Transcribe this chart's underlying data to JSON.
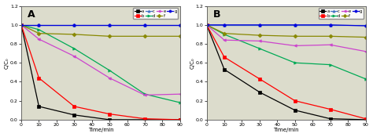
{
  "time_A": [
    0,
    10,
    30,
    50,
    70,
    90
  ],
  "time_B": [
    0,
    10,
    30,
    50,
    70,
    90
  ],
  "A": {
    "a": [
      1.0,
      0.14,
      0.05,
      0.0,
      0.0,
      0.0
    ],
    "b": [
      1.0,
      0.44,
      0.14,
      0.06,
      0.01,
      0.0
    ],
    "c": [
      1.0,
      1.0,
      1.0,
      1.0,
      1.0,
      1.0
    ],
    "d": [
      1.0,
      0.95,
      0.75,
      0.52,
      0.27,
      0.18
    ],
    "e": [
      1.0,
      0.85,
      0.67,
      0.44,
      0.26,
      0.27
    ],
    "f": [
      1.0,
      0.91,
      0.9,
      0.88,
      0.88,
      0.88
    ],
    "g": [
      1.0,
      1.0,
      1.0,
      1.0,
      1.0,
      1.0
    ]
  },
  "B": {
    "a": [
      1.0,
      0.53,
      0.29,
      0.1,
      0.01,
      0.0
    ],
    "b": [
      1.0,
      0.66,
      0.43,
      0.2,
      0.11,
      0.01
    ],
    "c": [
      1.0,
      1.0,
      1.0,
      1.0,
      1.0,
      1.0
    ],
    "d": [
      1.0,
      0.9,
      0.75,
      0.6,
      0.58,
      0.43
    ],
    "e": [
      1.0,
      0.84,
      0.83,
      0.78,
      0.79,
      0.72
    ],
    "f": [
      1.0,
      0.91,
      0.89,
      0.88,
      0.88,
      0.87
    ],
    "g": [
      1.0,
      1.0,
      1.0,
      1.0,
      1.0,
      0.99
    ]
  },
  "colors": {
    "a": "#000000",
    "b": "#ff0000",
    "c": "#4472c4",
    "d": "#00aa55",
    "e": "#cc44cc",
    "f": "#888800",
    "g": "#0000dd"
  },
  "markers": {
    "a": "s",
    "b": "s",
    "c": "^",
    "d": ">",
    "e": "<",
    "f": "D",
    "g": "o"
  },
  "xlabel": "Time/min",
  "ylabel": "C/C₀",
  "ylim": [
    0,
    1.2
  ],
  "xlim": [
    0,
    90
  ],
  "yticks": [
    0.0,
    0.2,
    0.4,
    0.6,
    0.8,
    1.0,
    1.2
  ],
  "xticks": [
    0,
    10,
    20,
    30,
    40,
    50,
    60,
    70,
    80,
    90
  ],
  "label_A": "A",
  "label_B": "B",
  "bg_color": "#ffffff",
  "plot_bg": "#dcdccc",
  "legend_order": [
    "a",
    "b",
    "c",
    "d",
    "e",
    "f",
    "g"
  ]
}
